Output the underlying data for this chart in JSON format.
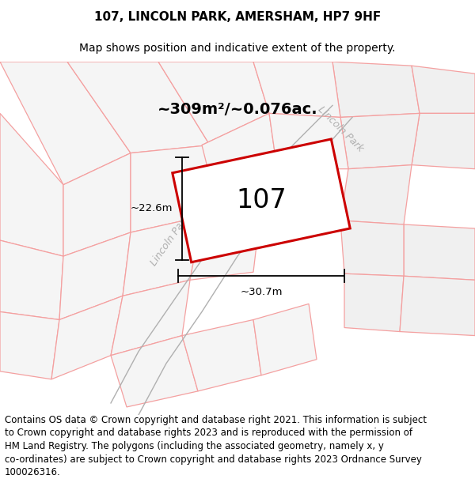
{
  "title": "107, LINCOLN PARK, AMERSHAM, HP7 9HF",
  "subtitle": "Map shows position and indicative extent of the property.",
  "footer_text": "Contains OS data © Crown copyright and database right 2021. This information is subject\nto Crown copyright and database rights 2023 and is reproduced with the permission of\nHM Land Registry. The polygons (including the associated geometry, namely x, y\nco-ordinates) are subject to Crown copyright and database rights 2023 Ordnance Survey\n100026316.",
  "area_label": "~309m²/~0.076ac.",
  "property_label": "107",
  "dim_h": "~30.7m",
  "dim_v": "~22.6m",
  "road_label": "Lincoln Park",
  "bg_color": "#ffffff",
  "map_bg": "#ffffff",
  "neighbor_fill": "#f0f0f0",
  "neighbor_edge": "#f4a0a0",
  "road_line_color": "#c0c0c0",
  "property_fill": "#ffffff",
  "property_edge": "#cc0000",
  "dim_line_color": "#000000",
  "title_fontsize": 11,
  "subtitle_fontsize": 10,
  "footer_fontsize": 8.5,
  "area_fontsize": 14,
  "label_fontsize": 24,
  "dim_fontsize": 9.5
}
